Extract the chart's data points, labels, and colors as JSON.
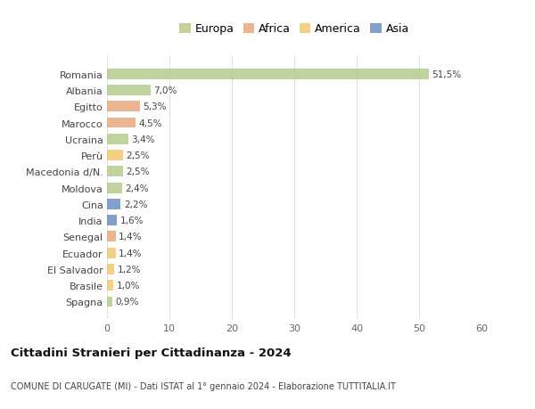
{
  "countries": [
    "Romania",
    "Albania",
    "Egitto",
    "Marocco",
    "Ucraina",
    "Perù",
    "Macedonia d/N.",
    "Moldova",
    "Cina",
    "India",
    "Senegal",
    "Ecuador",
    "El Salvador",
    "Brasile",
    "Spagna"
  ],
  "values": [
    51.5,
    7.0,
    5.3,
    4.5,
    3.4,
    2.5,
    2.5,
    2.4,
    2.2,
    1.6,
    1.4,
    1.4,
    1.2,
    1.0,
    0.9
  ],
  "labels": [
    "51,5%",
    "7,0%",
    "5,3%",
    "4,5%",
    "3,4%",
    "2,5%",
    "2,5%",
    "2,4%",
    "2,2%",
    "1,6%",
    "1,4%",
    "1,4%",
    "1,2%",
    "1,0%",
    "0,9%"
  ],
  "continents": [
    "Europa",
    "Europa",
    "Africa",
    "Africa",
    "Europa",
    "America",
    "Europa",
    "Europa",
    "Asia",
    "Asia",
    "Africa",
    "America",
    "America",
    "America",
    "Europa"
  ],
  "continent_colors": {
    "Europa": "#b5cc8e",
    "Africa": "#e8a87c",
    "America": "#f0c96e",
    "Asia": "#6b8fc2"
  },
  "legend_items": [
    "Europa",
    "Africa",
    "America",
    "Asia"
  ],
  "legend_colors": [
    "#b5cc8e",
    "#e8a87c",
    "#f0c96e",
    "#6b8fc2"
  ],
  "xlim": [
    0,
    60
  ],
  "xticks": [
    0,
    10,
    20,
    30,
    40,
    50,
    60
  ],
  "title": "Cittadini Stranieri per Cittadinanza - 2024",
  "subtitle": "COMUNE DI CARUGATE (MI) - Dati ISTAT al 1° gennaio 2024 - Elaborazione TUTTITALIA.IT",
  "background_color": "#ffffff",
  "grid_color": "#e0e0e0",
  "bar_alpha": 0.85,
  "bar_height": 0.65
}
